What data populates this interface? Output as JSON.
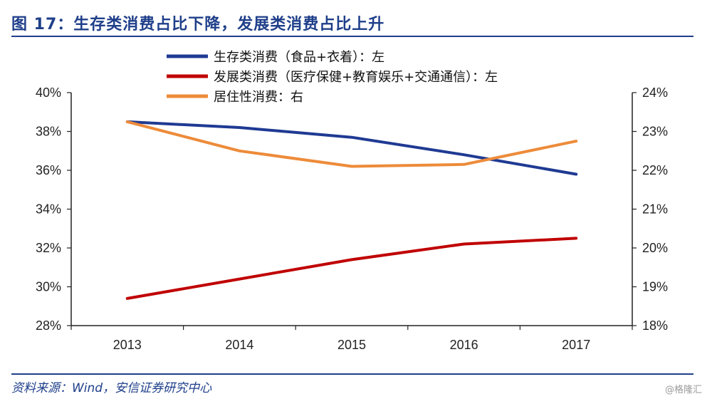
{
  "header": {
    "title": "图 17：生存类消费占比下降，发展类消费占比上升"
  },
  "footer": {
    "source": "资料来源：Wind，安信证券研究中心",
    "watermark": "@格隆汇"
  },
  "chart_data": {
    "type": "line",
    "title": "",
    "x": [
      "2013",
      "2014",
      "2015",
      "2016",
      "2017"
    ],
    "left_axis": {
      "min": 28,
      "max": 40,
      "step": 2,
      "tick_labels": [
        "28%",
        "30%",
        "32%",
        "34%",
        "36%",
        "38%",
        "40%"
      ]
    },
    "right_axis": {
      "min": 18,
      "max": 24,
      "step": 1,
      "tick_labels": [
        "18%",
        "19%",
        "20%",
        "21%",
        "22%",
        "23%",
        "24%"
      ]
    },
    "grid": false,
    "legend_position": "top",
    "series": [
      {
        "name": "生存类消费（食品+衣着）：左",
        "axis": "left",
        "color": "#1f3a93",
        "values": [
          38.5,
          38.2,
          37.7,
          36.8,
          35.8
        ]
      },
      {
        "name": "发展类消费（医疗保健+教育娱乐+交通通信）：左",
        "axis": "left",
        "color": "#c00000",
        "values": [
          29.4,
          30.4,
          31.4,
          32.2,
          32.5
        ]
      },
      {
        "name": "居住性消费：右",
        "axis": "right",
        "color": "#ed8b3a",
        "values": [
          23.25,
          22.5,
          22.1,
          22.15,
          22.75
        ]
      }
    ]
  }
}
